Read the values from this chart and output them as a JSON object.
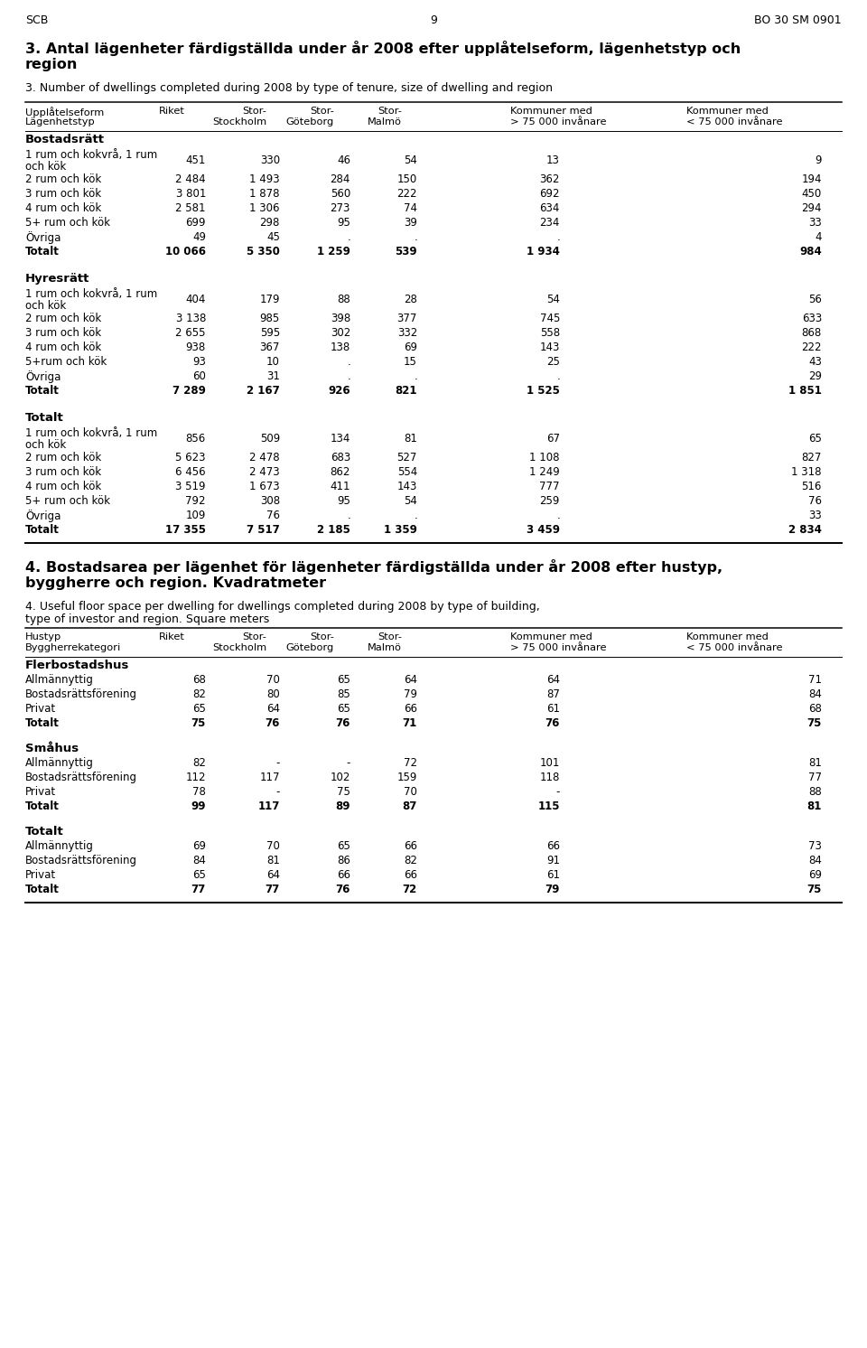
{
  "page_header_left": "SCB",
  "page_header_center": "9",
  "page_header_right": "BO 30 SM 0901",
  "section1_header": "Bostadsrätt",
  "section1_rows": [
    [
      "1 rum och kokvrå, 1 rum\noch kök",
      "451",
      "330",
      "46",
      "54",
      "13",
      "9"
    ],
    [
      "2 rum och kök",
      "2 484",
      "1 493",
      "284",
      "150",
      "362",
      "194"
    ],
    [
      "3 rum och kök",
      "3 801",
      "1 878",
      "560",
      "222",
      "692",
      "450"
    ],
    [
      "4 rum och kök",
      "2 581",
      "1 306",
      "273",
      "74",
      "634",
      "294"
    ],
    [
      "5+ rum och kök",
      "699",
      "298",
      "95",
      "39",
      "234",
      "33"
    ],
    [
      "Övriga",
      "49",
      "45",
      ".",
      ".",
      ".",
      "4"
    ],
    [
      "Totalt",
      "10 066",
      "5 350",
      "1 259",
      "539",
      "1 934",
      "984"
    ]
  ],
  "section2_header": "Hyresrätt",
  "section2_rows": [
    [
      "1 rum och kokvrå, 1 rum\noch kök",
      "404",
      "179",
      "88",
      "28",
      "54",
      "56"
    ],
    [
      "2 rum och kök",
      "3 138",
      "985",
      "398",
      "377",
      "745",
      "633"
    ],
    [
      "3 rum och kök",
      "2 655",
      "595",
      "302",
      "332",
      "558",
      "868"
    ],
    [
      "4 rum och kök",
      "938",
      "367",
      "138",
      "69",
      "143",
      "222"
    ],
    [
      "5+rum och kök",
      "93",
      "10",
      ".",
      "15",
      "25",
      "43"
    ],
    [
      "Övriga",
      "60",
      "31",
      ".",
      ".",
      ".",
      "29"
    ],
    [
      "Totalt",
      "7 289",
      "2 167",
      "926",
      "821",
      "1 525",
      "1 851"
    ]
  ],
  "section3_header": "Totalt",
  "section3_rows": [
    [
      "1 rum och kokvrå, 1 rum\noch kök",
      "856",
      "509",
      "134",
      "81",
      "67",
      "65"
    ],
    [
      "2 rum och kök",
      "5 623",
      "2 478",
      "683",
      "527",
      "1 108",
      "827"
    ],
    [
      "3 rum och kök",
      "6 456",
      "2 473",
      "862",
      "554",
      "1 249",
      "1 318"
    ],
    [
      "4 rum och kök",
      "3 519",
      "1 673",
      "411",
      "143",
      "777",
      "516"
    ],
    [
      "5+ rum och kök",
      "792",
      "308",
      "95",
      "54",
      "259",
      "76"
    ],
    [
      "Övriga",
      "109",
      "76",
      ".",
      ".",
      ".",
      "33"
    ],
    [
      "Totalt",
      "17 355",
      "7 517",
      "2 185",
      "1 359",
      "3 459",
      "2 834"
    ]
  ],
  "section4_header": "Flerbostadshus",
  "section4_rows": [
    [
      "Allmännyttig",
      "68",
      "70",
      "65",
      "64",
      "64",
      "71"
    ],
    [
      "Bostadsrättsförening",
      "82",
      "80",
      "85",
      "79",
      "87",
      "84"
    ],
    [
      "Privat",
      "65",
      "64",
      "65",
      "66",
      "61",
      "68"
    ],
    [
      "Totalt",
      "75",
      "76",
      "76",
      "71",
      "76",
      "75"
    ]
  ],
  "section5_header": "Småhus",
  "section5_rows": [
    [
      "Allmännyttig",
      "82",
      "-",
      "-",
      "72",
      "101",
      "81"
    ],
    [
      "Bostadsrättsförening",
      "112",
      "117",
      "102",
      "159",
      "118",
      "77"
    ],
    [
      "Privat",
      "78",
      "-",
      "75",
      "70",
      "-",
      "88"
    ],
    [
      "Totalt",
      "99",
      "117",
      "89",
      "87",
      "115",
      "81"
    ]
  ],
  "section6_header": "Totalt",
  "section6_rows": [
    [
      "Allmännyttig",
      "69",
      "70",
      "65",
      "66",
      "66",
      "73"
    ],
    [
      "Bostadsrättsförening",
      "84",
      "81",
      "86",
      "82",
      "91",
      "84"
    ],
    [
      "Privat",
      "65",
      "64",
      "66",
      "66",
      "61",
      "69"
    ],
    [
      "Totalt",
      "77",
      "77",
      "76",
      "72",
      "79",
      "75"
    ]
  ],
  "col_headers_t3": [
    [
      "Upplåtelseform",
      "Lägenhetstyp"
    ],
    [
      "Riket",
      ""
    ],
    [
      "Stor-",
      "Stockholm"
    ],
    [
      "Stor-",
      "Göteborg"
    ],
    [
      "Stor-",
      "Malmö"
    ],
    [
      "Kommuner med",
      "> 75 000 invånare"
    ],
    [
      "Kommuner med",
      "< 75 000 invånare"
    ]
  ],
  "col_headers_t4": [
    [
      "Hustyp",
      "Byggherrekategori"
    ],
    [
      "Riket",
      ""
    ],
    [
      "Stor-",
      "Stockholm"
    ],
    [
      "Stor-",
      "Göteborg"
    ],
    [
      "Stor-",
      "Malmö"
    ],
    [
      "Kommuner med",
      "> 75 000 invånare"
    ],
    [
      "Kommuner med",
      "< 75 000 invånare"
    ]
  ]
}
